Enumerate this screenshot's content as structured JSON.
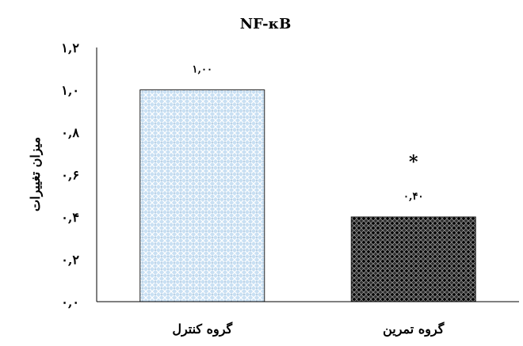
{
  "chart_data": {
    "type": "bar",
    "title": "NF-κB",
    "ylabel": "میزان تغییرات",
    "xlabel": "",
    "categories": [
      "گروه کنترل",
      "گروه تمرین"
    ],
    "values": [
      1.0,
      0.4
    ],
    "data_labels": [
      "۱,۰۰",
      "۰,۴۰"
    ],
    "annotations": [
      "",
      "*"
    ],
    "ylim": [
      0,
      1.2
    ],
    "yticks": [
      0,
      0.2,
      0.4,
      0.6,
      0.8,
      1.0,
      1.2
    ],
    "ytick_labels": [
      "۰,۰",
      "۰,۲",
      "۰,۴",
      "۰,۶",
      "۰,۸",
      "۱,۰",
      "۱,۲"
    ],
    "grid": false,
    "colors": {
      "bar_control": "#bcd7ee",
      "bar_exercise": "#3a3a3a",
      "axis": "#000000"
    }
  }
}
